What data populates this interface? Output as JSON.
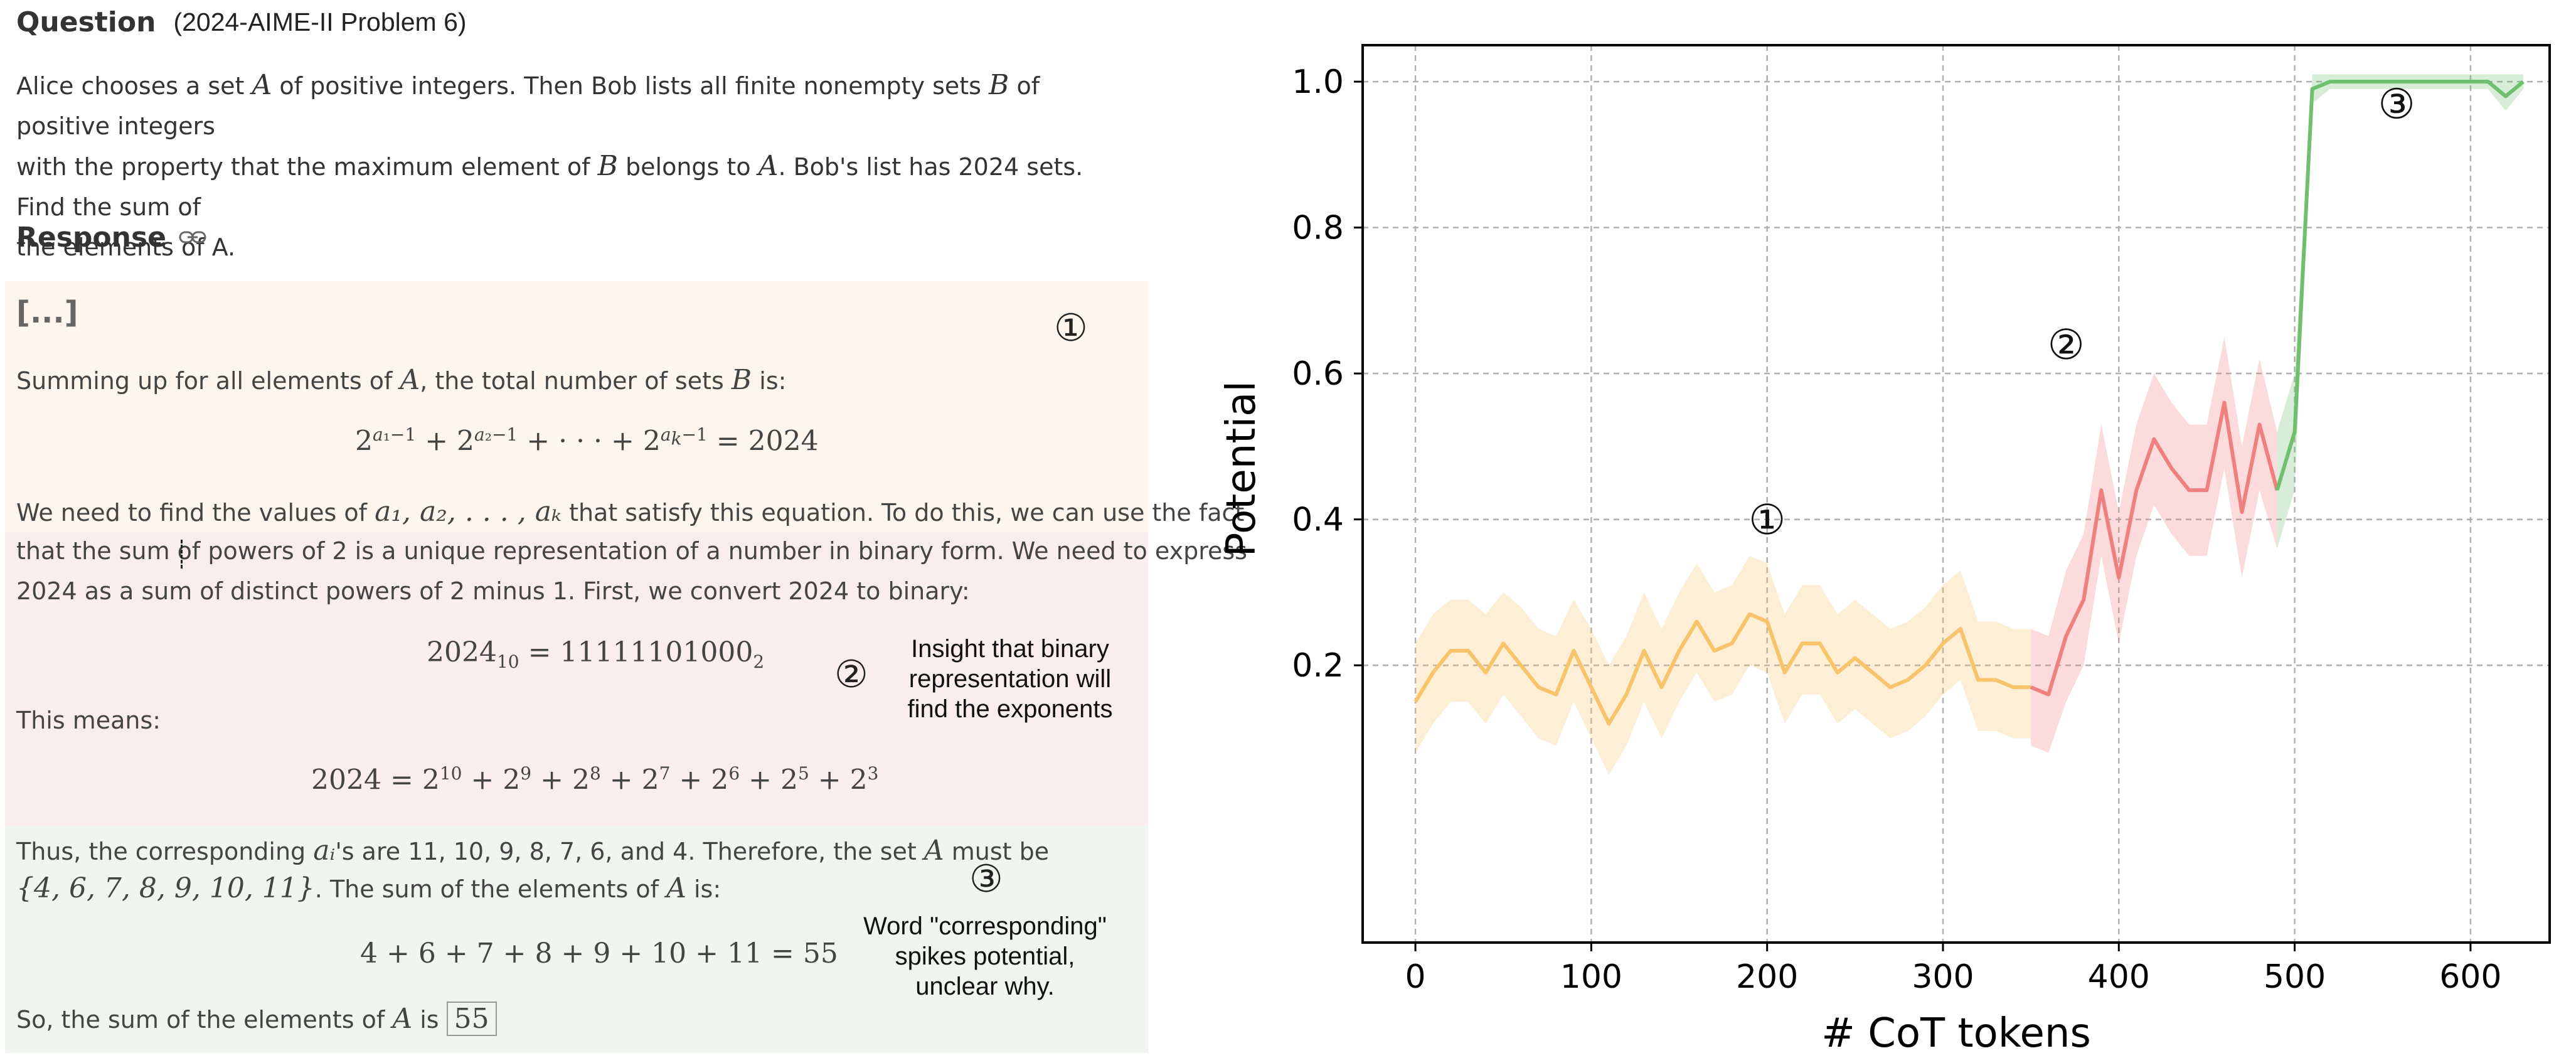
{
  "question": {
    "title": "Question",
    "source": "(2024-AIME-II Problem 6)",
    "line1_a": "Alice chooses a set ",
    "line1_b": " of positive integers. Then Bob lists all finite nonempty sets ",
    "line1_c": " of positive integers",
    "line2_a": "with the property that the maximum element of ",
    "line2_b": " belongs to ",
    "line2_c": ". Bob's list has 2024 sets. Find the sum of",
    "line3": "the elements of A.",
    "var_A": "A",
    "var_B": "B"
  },
  "response": {
    "title": "Response",
    "ellipsis": "[...]",
    "p1_a": "Summing up for all elements of ",
    "p1_b": ", the total number of sets ",
    "p1_c": " is:",
    "p2_a": "We need to find the values of ",
    "p2_vars": "a₁, a₂, . . . , aₖ",
    "p2_b": " that satisfy this equation. To do this, we can use the fact",
    "p3": "that the sum of powers of 2 is a unique representation of a number in binary form. We need to express",
    "p4": "2024 as a sum of distinct powers of 2 minus 1. First, we convert 2024 to binary:",
    "binary_lhs": "2024",
    "binary_lhs_sub": "10",
    "binary_rhs": " = 11111101000",
    "binary_rhs_sub": "2",
    "p5": "This means:",
    "p6_a": "Thus, the corresponding ",
    "p6_var": "aᵢ",
    "p6_b": "'s are 11, 10, 9, 8, 7, 6, and 4. Therefore, the set ",
    "p6_c": " must be",
    "p7_set": "{4, 6, 7, 8, 9, 10, 11}",
    "p7_b": ". The sum of the elements of ",
    "p7_c": " is:",
    "sum_eq": "4 + 6 + 7 + 8 + 9 + 10 + 11 = 55",
    "p8_a": "So, the sum of the elements of ",
    "p8_b": " is ",
    "answer": "55"
  },
  "annotations": {
    "n1": "①",
    "n2": "②",
    "n3": "③",
    "insight_1": "Insight that binary",
    "insight_2": "representation will",
    "insight_3": "find the exponents",
    "word_1": "Word \"corresponding\"",
    "word_2": "spikes potential,",
    "word_3": "unclear why."
  },
  "colors": {
    "phase1": "#f7c36b",
    "phase2": "#f07f7f",
    "phase3": "#6fbf6f",
    "seg1_bg": "#fdf5ee",
    "seg2_bg": "#faeded",
    "seg3_bg": "#f0f5ef"
  },
  "chart_data": {
    "type": "line",
    "xlabel": "# CoT tokens",
    "ylabel": "Potential",
    "xlim": [
      -30,
      645
    ],
    "ylim": [
      -0.18,
      1.05
    ],
    "xticks": [
      0,
      100,
      200,
      300,
      400,
      500,
      600
    ],
    "yticks": [
      0.2,
      0.4,
      0.6,
      0.8,
      1.0
    ],
    "ytick_labels": [
      "0.2",
      "0.4",
      "0.6",
      "0.8",
      "1.0"
    ],
    "grid": true,
    "series": [
      {
        "name": "phase1",
        "x": [
          0,
          10,
          20,
          30,
          40,
          50,
          60,
          70,
          80,
          90,
          100,
          110,
          120,
          130,
          140,
          150,
          160,
          170,
          180,
          190,
          200,
          210,
          220,
          230,
          240,
          250,
          260,
          270,
          280,
          290,
          300,
          310,
          320,
          330,
          340,
          350
        ],
        "y": [
          0.15,
          0.19,
          0.22,
          0.22,
          0.19,
          0.23,
          0.2,
          0.17,
          0.16,
          0.22,
          0.17,
          0.12,
          0.16,
          0.22,
          0.17,
          0.22,
          0.26,
          0.22,
          0.23,
          0.27,
          0.26,
          0.19,
          0.23,
          0.23,
          0.19,
          0.21,
          0.19,
          0.17,
          0.18,
          0.2,
          0.23,
          0.25,
          0.18,
          0.18,
          0.17,
          0.17
        ],
        "upper": [
          0.23,
          0.27,
          0.29,
          0.29,
          0.27,
          0.3,
          0.28,
          0.25,
          0.24,
          0.29,
          0.25,
          0.2,
          0.24,
          0.3,
          0.25,
          0.3,
          0.34,
          0.3,
          0.31,
          0.35,
          0.34,
          0.27,
          0.31,
          0.31,
          0.27,
          0.29,
          0.27,
          0.25,
          0.26,
          0.28,
          0.31,
          0.33,
          0.26,
          0.26,
          0.25,
          0.25
        ],
        "lower": [
          0.08,
          0.12,
          0.15,
          0.15,
          0.12,
          0.16,
          0.13,
          0.1,
          0.09,
          0.15,
          0.1,
          0.05,
          0.09,
          0.15,
          0.1,
          0.15,
          0.19,
          0.15,
          0.16,
          0.2,
          0.19,
          0.12,
          0.16,
          0.16,
          0.12,
          0.14,
          0.12,
          0.1,
          0.11,
          0.13,
          0.16,
          0.18,
          0.11,
          0.11,
          0.1,
          0.1
        ]
      },
      {
        "name": "phase2",
        "x": [
          350,
          360,
          370,
          380,
          390,
          400,
          410,
          420,
          430,
          440,
          450,
          460,
          470,
          480,
          490
        ],
        "y": [
          0.17,
          0.16,
          0.24,
          0.29,
          0.44,
          0.32,
          0.44,
          0.51,
          0.47,
          0.44,
          0.44,
          0.56,
          0.41,
          0.53,
          0.44
        ],
        "upper": [
          0.25,
          0.24,
          0.33,
          0.38,
          0.53,
          0.41,
          0.53,
          0.6,
          0.56,
          0.53,
          0.53,
          0.65,
          0.5,
          0.62,
          0.52
        ],
        "lower": [
          0.09,
          0.08,
          0.15,
          0.2,
          0.35,
          0.23,
          0.35,
          0.42,
          0.38,
          0.35,
          0.35,
          0.47,
          0.32,
          0.44,
          0.36
        ]
      },
      {
        "name": "phase3",
        "x": [
          490,
          500,
          510,
          520,
          530,
          540,
          550,
          560,
          570,
          580,
          590,
          600,
          610,
          620,
          630
        ],
        "y": [
          0.44,
          0.52,
          0.99,
          1.0,
          1.0,
          1.0,
          1.0,
          1.0,
          1.0,
          1.0,
          1.0,
          1.0,
          1.0,
          0.98,
          1.0
        ],
        "upper": [
          0.52,
          0.6,
          1.01,
          1.01,
          1.01,
          1.01,
          1.01,
          1.01,
          1.01,
          1.01,
          1.01,
          1.01,
          1.01,
          1.01,
          1.01
        ],
        "lower": [
          0.36,
          0.44,
          0.97,
          0.99,
          0.99,
          0.99,
          0.99,
          0.99,
          0.99,
          0.99,
          0.99,
          0.99,
          0.99,
          0.96,
          0.99
        ]
      }
    ],
    "annotations": [
      {
        "text": "①",
        "x": 200,
        "y": 0.38
      },
      {
        "text": "②",
        "x": 370,
        "y": 0.62
      },
      {
        "text": "③",
        "x": 558,
        "y": 0.95
      }
    ]
  }
}
